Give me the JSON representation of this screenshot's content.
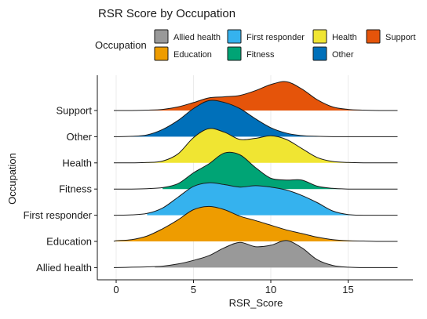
{
  "chart_data": {
    "type": "ridgeline",
    "title": "RSR Score by Occupation",
    "xlabel": "RSR_Score",
    "ylabel": "Occupation",
    "xlim": [
      -1,
      18.5
    ],
    "x_ticks": [
      0,
      5,
      10,
      15
    ],
    "legend": {
      "title": "Occupation",
      "placement": "top",
      "entries": [
        {
          "name": "Allied health",
          "color": "#999999"
        },
        {
          "name": "First responder",
          "color": "#35B2EE"
        },
        {
          "name": "Health",
          "color": "#F0E532"
        },
        {
          "name": "Support",
          "color": "#E5540A"
        },
        {
          "name": "Education",
          "color": "#EE9C00"
        },
        {
          "name": "Fitness",
          "color": "#00A475"
        },
        {
          "name": "Other",
          "color": "#0070BA"
        }
      ]
    },
    "x_grid": [
      -0.15,
      0,
      1,
      2,
      3,
      4,
      5,
      6,
      7,
      8,
      9,
      10,
      11,
      12,
      13,
      14,
      15,
      16,
      17,
      18.2
    ],
    "series": [
      {
        "name": "Allied health",
        "color": "#999999",
        "fill_start": 2.5,
        "fill_end": 16.3,
        "density": [
          0,
          0,
          0.01,
          0.02,
          0.04,
          0.1,
          0.2,
          0.33,
          0.55,
          0.7,
          0.58,
          0.62,
          0.75,
          0.55,
          0.22,
          0.06,
          0.01,
          0,
          0,
          0
        ]
      },
      {
        "name": "Education",
        "color": "#EE9C00",
        "fill_start": -0.1,
        "fill_end": 16.5,
        "density": [
          0,
          0.02,
          0.05,
          0.15,
          0.35,
          0.6,
          0.88,
          0.97,
          0.88,
          0.7,
          0.58,
          0.45,
          0.32,
          0.22,
          0.12,
          0.05,
          0.02,
          0.01,
          0,
          0
        ]
      },
      {
        "name": "First responder",
        "color": "#35B2EE",
        "fill_start": 2,
        "fill_end": 16.2,
        "density": [
          0,
          0,
          0.01,
          0.05,
          0.2,
          0.5,
          0.8,
          0.9,
          0.85,
          0.78,
          0.82,
          0.78,
          0.7,
          0.55,
          0.35,
          0.12,
          0.02,
          0,
          0,
          0
        ]
      },
      {
        "name": "Fitness",
        "color": "#00A475",
        "fill_start": 3,
        "fill_end": 14.5,
        "density": [
          0,
          0,
          0,
          0.01,
          0.04,
          0.15,
          0.45,
          0.7,
          1.0,
          0.95,
          0.6,
          0.3,
          0.25,
          0.25,
          0.08,
          0.02,
          0,
          0,
          0,
          0
        ]
      },
      {
        "name": "Health",
        "color": "#F0E532",
        "fill_start": 1.5,
        "fill_end": 16.5,
        "density": [
          0,
          0,
          0,
          0.01,
          0.05,
          0.25,
          0.7,
          0.95,
          0.85,
          0.65,
          0.68,
          0.75,
          0.65,
          0.4,
          0.15,
          0.04,
          0.01,
          0,
          0,
          0
        ]
      },
      {
        "name": "Other",
        "color": "#0070BA",
        "fill_start": -0.1,
        "fill_end": 18.2,
        "density": [
          0,
          0,
          0.01,
          0.05,
          0.2,
          0.45,
          0.78,
          1.0,
          0.95,
          0.78,
          0.5,
          0.25,
          0.1,
          0.03,
          0.01,
          0,
          0,
          0,
          0,
          0
        ]
      },
      {
        "name": "Support",
        "color": "#E5540A",
        "fill_start": -0.1,
        "fill_end": 18.2,
        "density": [
          0,
          0,
          0,
          0.01,
          0.03,
          0.1,
          0.22,
          0.35,
          0.38,
          0.42,
          0.55,
          0.72,
          0.8,
          0.6,
          0.3,
          0.1,
          0.03,
          0.01,
          0,
          0
        ]
      }
    ]
  }
}
